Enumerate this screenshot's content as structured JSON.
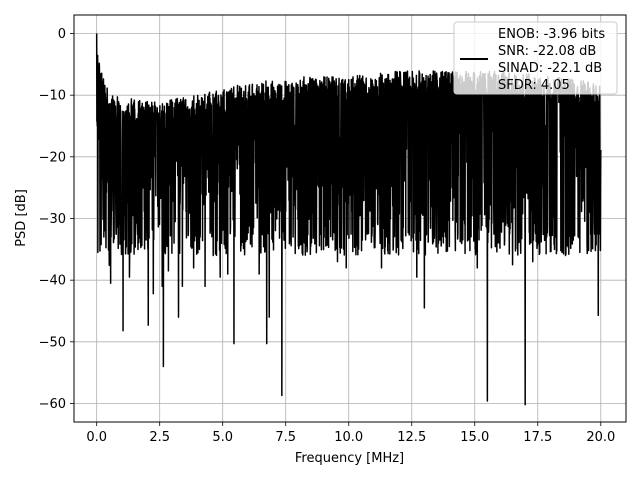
{
  "chart_data": {
    "type": "line",
    "title": "",
    "xlabel": "Frequency [MHz]",
    "ylabel": "PSD [dB]",
    "xlim": [
      -0.9,
      21.0
    ],
    "ylim": [
      -63.0,
      3.0
    ],
    "x_ticks": [
      0.0,
      2.5,
      5.0,
      7.5,
      10.0,
      12.5,
      15.0,
      17.5,
      20.0
    ],
    "x_tick_labels": [
      "0.0",
      "2.5",
      "5.0",
      "7.5",
      "10.0",
      "12.5",
      "15.0",
      "17.5",
      "20.0"
    ],
    "y_ticks": [
      0,
      -10,
      -20,
      -30,
      -40,
      -50,
      -60
    ],
    "y_tick_labels": [
      "0",
      "−10",
      "−20",
      "−30",
      "−40",
      "−50",
      "−60"
    ],
    "grid": true,
    "legend_position": "top-right",
    "legend_entries": [
      "ENOB: -3.96 bits",
      "SNR: -22.08 dB",
      "SINAD: -22.1 dB",
      "SFDR: 4.05"
    ],
    "series_color": "#000000",
    "series": [
      {
        "x_range": [
          0.0,
          20.0
        ],
        "baseline_range": [
          -32,
          -12
        ],
        "peak": {
          "x": 0.0,
          "y": 0.0
        },
        "upper_envelope_points": [
          [
            0.0,
            -5
          ],
          [
            0.5,
            -12
          ],
          [
            2.0,
            -13
          ],
          [
            4.0,
            -12
          ],
          [
            6.0,
            -10
          ],
          [
            8.0,
            -9
          ],
          [
            10.0,
            -9
          ],
          [
            12.0,
            -8
          ],
          [
            14.0,
            -8
          ],
          [
            16.0,
            -8
          ],
          [
            18.0,
            -9
          ],
          [
            20.0,
            -10
          ]
        ],
        "spikes": [
          [
            0.05,
            -35.5
          ],
          [
            0.5,
            -37.6
          ],
          [
            0.55,
            -40.5
          ],
          [
            1.05,
            -48.2
          ],
          [
            1.3,
            -39.5
          ],
          [
            2.05,
            -47.3
          ],
          [
            2.25,
            -42.2
          ],
          [
            2.6,
            -41.0
          ],
          [
            2.65,
            -54.0
          ],
          [
            2.85,
            -38.5
          ],
          [
            3.25,
            -46.0
          ],
          [
            3.4,
            -41.0
          ],
          [
            3.85,
            -38.0
          ],
          [
            4.3,
            -41.0
          ],
          [
            4.9,
            -39.5
          ],
          [
            5.2,
            -39.0
          ],
          [
            5.45,
            -50.3
          ],
          [
            6.45,
            -39.0
          ],
          [
            6.75,
            -50.3
          ],
          [
            6.85,
            -46.0
          ],
          [
            7.35,
            -58.7
          ],
          [
            9.55,
            -37.0
          ],
          [
            9.9,
            -38.0
          ],
          [
            11.3,
            -38.0
          ],
          [
            12.7,
            -39.5
          ],
          [
            13.0,
            -44.5
          ],
          [
            15.1,
            -38.0
          ],
          [
            15.5,
            -59.6
          ],
          [
            16.5,
            -37.5
          ],
          [
            17.0,
            -60.2
          ],
          [
            17.3,
            -37.0
          ],
          [
            18.6,
            -36.0
          ],
          [
            19.9,
            -45.7
          ]
        ]
      }
    ]
  }
}
